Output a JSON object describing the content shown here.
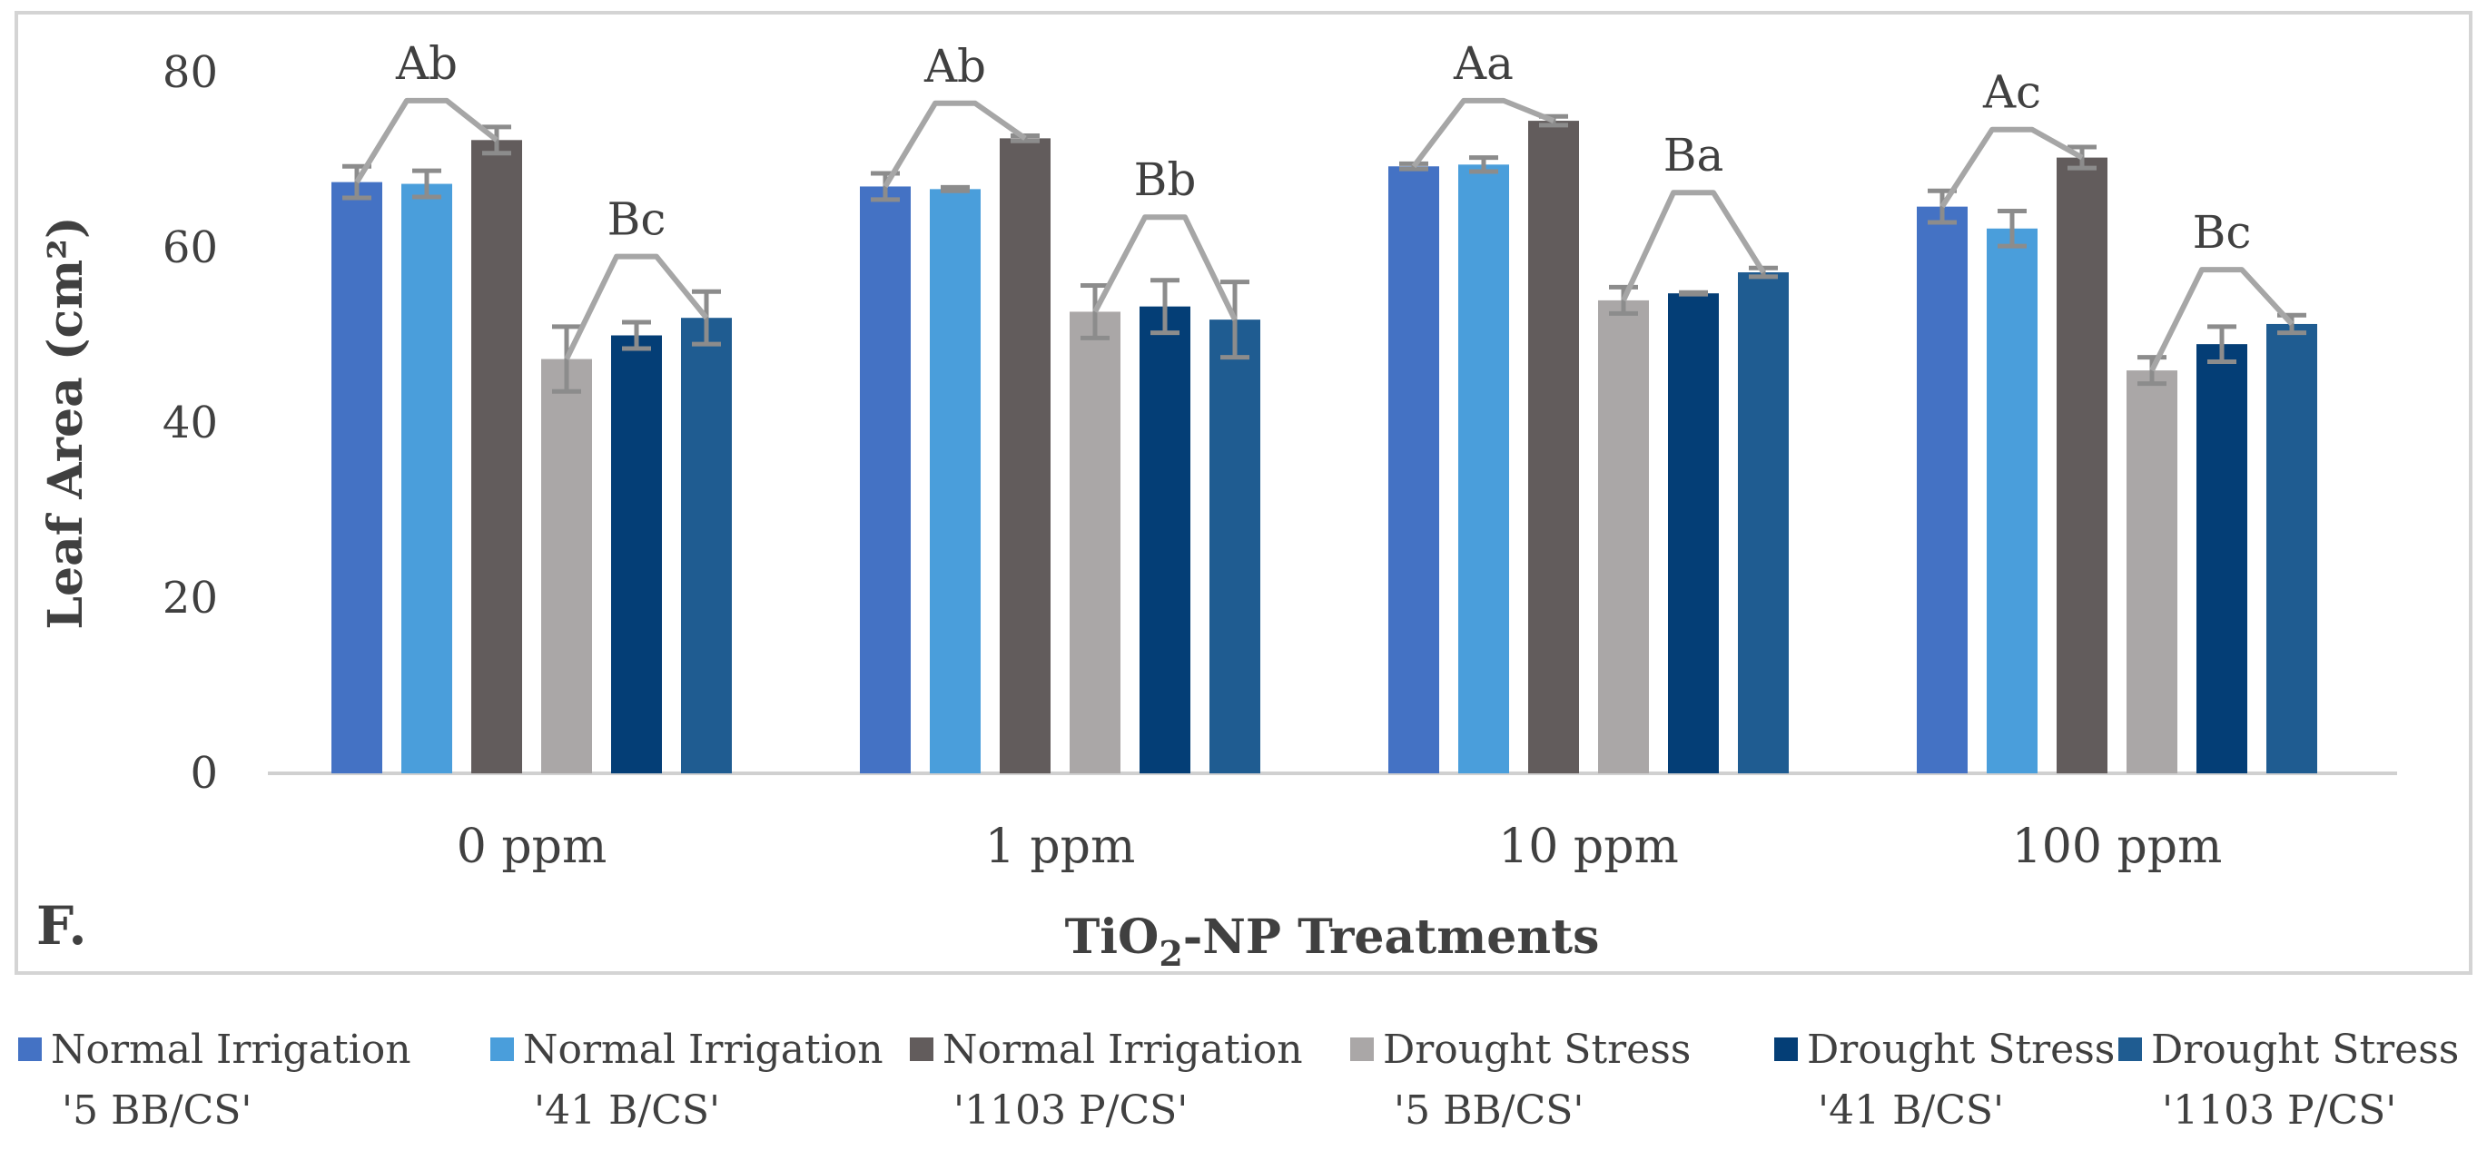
{
  "chart_data": {
    "type": "bar",
    "panel_label": "F.",
    "xlabel": "TiO2-NP Treatments",
    "xlabel_parts": {
      "prefix": "TiO",
      "subscript": "2",
      "suffix": "-NP Treatments"
    },
    "ylabel": "Leaf Area (cm²)",
    "ylim": [
      0,
      80
    ],
    "yticks": [
      "0",
      "20",
      "40",
      "60",
      "80"
    ],
    "grid": false,
    "legend_position": "bottom",
    "categories": [
      "0 ppm",
      "1 ppm",
      "10 ppm",
      "100 ppm"
    ],
    "series": [
      {
        "name": "Normal Irrigation '5 BB/CS'",
        "name_line1": "Normal Irrigation",
        "name_line2": "'5 BB/CS'",
        "color": "#4472c4",
        "values": [
          67.5,
          67.0,
          69.3,
          64.7
        ],
        "errors": [
          1.8,
          1.5,
          0.3,
          1.8
        ]
      },
      {
        "name": "Normal Irrigation '41 B/CS'",
        "name_line1": "Normal Irrigation",
        "name_line2": "'41 B/CS'",
        "color": "#4a9edb",
        "values": [
          67.3,
          66.7,
          69.5,
          62.2
        ],
        "errors": [
          1.5,
          0.2,
          0.8,
          2.0
        ]
      },
      {
        "name": "Normal Irrigation '1103 P/CS'",
        "name_line1": "Normal Irrigation",
        "name_line2": "'1103 P/CS'",
        "color": "#625c5c",
        "values": [
          72.3,
          72.5,
          74.5,
          70.3
        ],
        "errors": [
          1.5,
          0.3,
          0.5,
          1.2
        ]
      },
      {
        "name": "Drought Stress '5 BB/CS'",
        "name_line1": "Drought Stress",
        "name_line2": "'5 BB/CS'",
        "color": "#aaa7a7",
        "values": [
          47.3,
          52.7,
          54.0,
          46.0
        ],
        "errors": [
          3.7,
          3.0,
          1.5,
          1.5
        ]
      },
      {
        "name": "Drought Stress '41 B/CS'",
        "name_line1": "Drought Stress",
        "name_line2": "'41 B/CS'",
        "color": "#043e76",
        "values": [
          50.0,
          53.3,
          54.8,
          49.0
        ],
        "errors": [
          1.5,
          3.0,
          0.1,
          2.0
        ]
      },
      {
        "name": "Drought Stress '1103 P/CS'",
        "name_line1": "Drought Stress",
        "name_line2": "'1103 P/CS'",
        "color": "#1f5c91",
        "values": [
          52.0,
          51.8,
          57.2,
          51.3
        ],
        "errors": [
          3.0,
          4.3,
          0.5,
          1.0
        ]
      }
    ],
    "annotations": [
      {
        "category": "0 ppm",
        "group": "Normal Irrigation",
        "label": "Ab",
        "peak_value": 76.8
      },
      {
        "category": "0 ppm",
        "group": "Drought Stress",
        "label": "Bc",
        "peak_value": 59.0
      },
      {
        "category": "1 ppm",
        "group": "Normal Irrigation",
        "label": "Ab",
        "peak_value": 76.5
      },
      {
        "category": "1 ppm",
        "group": "Drought Stress",
        "label": "Bb",
        "peak_value": 63.5
      },
      {
        "category": "10 ppm",
        "group": "Normal Irrigation",
        "label": "Aa",
        "peak_value": 76.8
      },
      {
        "category": "10 ppm",
        "group": "Drought Stress",
        "label": "Ba",
        "peak_value": 66.3
      },
      {
        "category": "100 ppm",
        "group": "Normal Irrigation",
        "label": "Ac",
        "peak_value": 73.5
      },
      {
        "category": "100 ppm",
        "group": "Drought Stress",
        "label": "Bc",
        "peak_value": 57.5
      }
    ]
  }
}
